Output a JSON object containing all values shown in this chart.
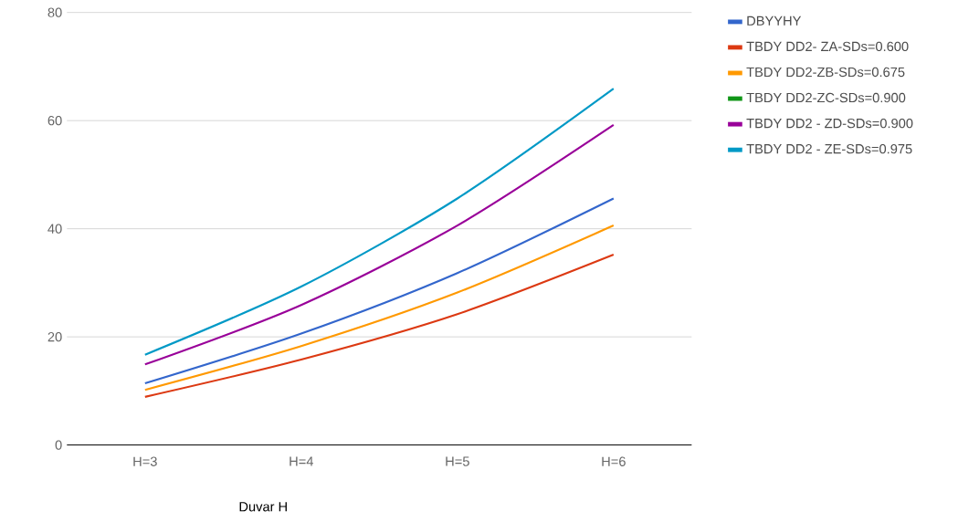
{
  "chart_data": {
    "type": "line",
    "xlabel": "Duvar H",
    "categories": [
      "H=3",
      "H=4",
      "H=5",
      "H=6"
    ],
    "series": [
      {
        "name": "DBYYHY",
        "color": "#3366cc",
        "values": [
          11.4,
          20.6,
          31.8,
          45.6
        ]
      },
      {
        "name": "TBDY DD2- ZA-SDs=0.600",
        "color": "#dc3912",
        "values": [
          8.9,
          15.8,
          24.2,
          35.2
        ]
      },
      {
        "name": "TBDY DD2-ZB-SDs=0.675",
        "color": "#ff9900",
        "values": [
          10.2,
          18.3,
          28.2,
          40.6
        ]
      },
      {
        "name": "TBDY DD2-ZC-SDs=0.900",
        "color": "#109618",
        "values": [
          null,
          null,
          null,
          null
        ]
      },
      {
        "name": "TBDY DD2 - ZD-SDs=0.900",
        "color": "#990099",
        "values": [
          14.9,
          25.9,
          40.6,
          59.2
        ]
      },
      {
        "name": "TBDY DD2 - ZE-SDs=0.975",
        "color": "#0099c6",
        "values": [
          16.7,
          29.3,
          45.6,
          65.9
        ]
      }
    ],
    "ylim": [
      0,
      80
    ],
    "yticks": [
      0,
      20,
      40,
      60,
      80
    ],
    "grid": "y",
    "legend": "right",
    "marker": "none",
    "line_style": "solid"
  }
}
